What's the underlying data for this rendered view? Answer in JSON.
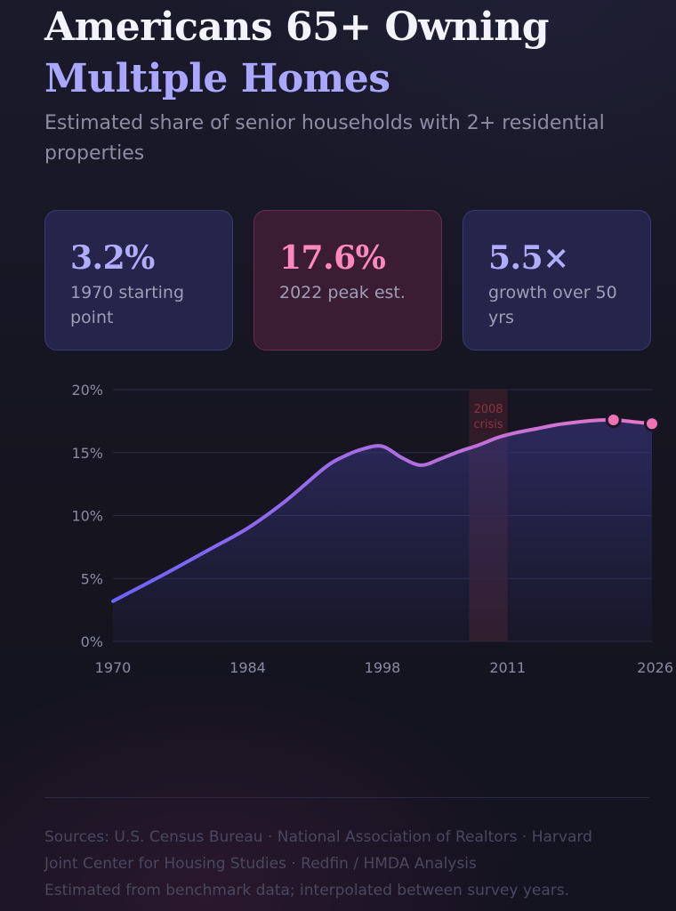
{
  "header": {
    "title_line1": "Americans 65+ Owning",
    "title_line2": "Multiple Homes",
    "subtitle": "Estimated share of senior households with 2+ residential properties"
  },
  "stats": [
    {
      "value": "3.2%",
      "label": "1970 starting point"
    },
    {
      "value": "17.6%",
      "label": "2022 peak est."
    },
    {
      "value": "5.5×",
      "label": "growth over 50 yrs"
    }
  ],
  "chart_data": {
    "type": "area",
    "title": "",
    "xlabel": "",
    "ylabel": "",
    "xlim": [
      1970,
      2026
    ],
    "ylim": [
      0,
      20
    ],
    "x_ticks": [
      "1970",
      "1984",
      "1998",
      "2011",
      "2026"
    ],
    "y_ticks": [
      "0%",
      "5%",
      "10%",
      "15%",
      "20%"
    ],
    "grid": true,
    "series": [
      {
        "x": [
          1970,
          1975,
          1980,
          1984,
          1988,
          1992,
          1994,
          1996,
          1998,
          2000,
          2002,
          2004,
          2006,
          2008,
          2010,
          2012,
          2014,
          2016,
          2018,
          2020,
          2022,
          2024,
          2026
        ],
        "values": [
          3.2,
          5.2,
          7.3,
          9.0,
          11.2,
          13.8,
          14.7,
          15.3,
          15.5,
          14.6,
          14.0,
          14.5,
          15.1,
          15.6,
          16.2,
          16.6,
          16.9,
          17.2,
          17.4,
          17.55,
          17.6,
          17.45,
          17.3
        ]
      }
    ],
    "highlighted_points": [
      {
        "x": 2022,
        "y": 17.6
      },
      {
        "x": 2026,
        "y": 17.3
      }
    ],
    "annotation": {
      "label_line1": "2008",
      "label_line2": "crisis",
      "x_start": 2007,
      "x_end": 2011
    },
    "colors": {
      "line_start": "#6d63ff",
      "line_end": "#e777c6",
      "area": "#3b3a8c",
      "point_fill": "#ef72b4",
      "grid": "#2c2b45",
      "tick": "#8c8aa3",
      "annotation_band": "#3a1d28",
      "annotation_text": "#8a3444"
    }
  },
  "footer": {
    "sources_line1": "Sources: U.S. Census Bureau · National Association of Realtors · Harvard",
    "sources_line2": "Joint Center for Housing Studies · Redfin / HMDA Analysis",
    "note": "Estimated from benchmark data; interpolated between survey years."
  }
}
